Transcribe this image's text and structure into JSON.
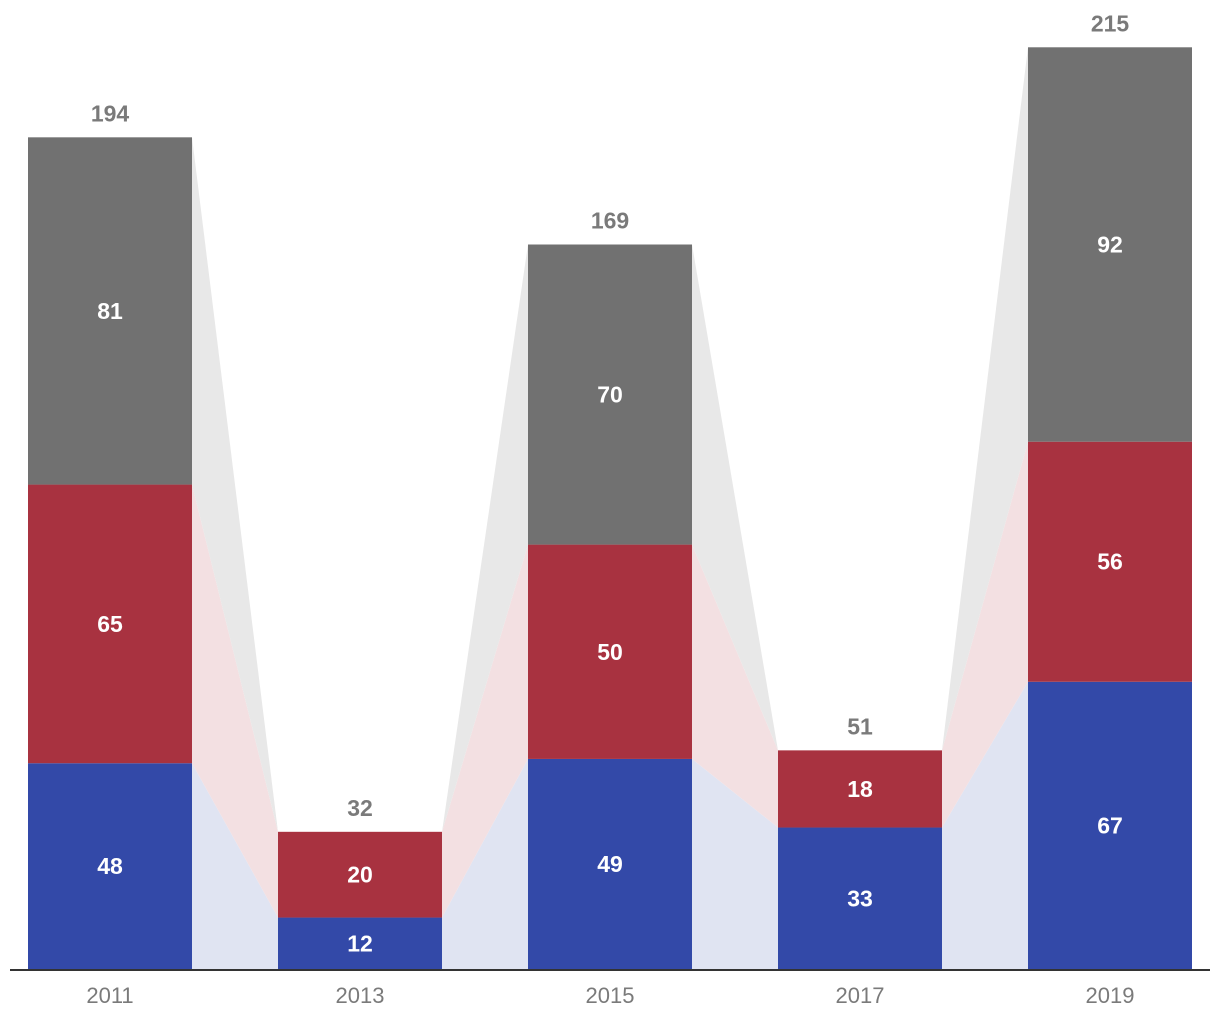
{
  "chart_data": {
    "type": "bar",
    "stacked": true,
    "categories": [
      "2011",
      "2013",
      "2015",
      "2017",
      "2019"
    ],
    "series": [
      {
        "values": [
          48,
          12,
          49,
          33,
          67
        ],
        "color": "#3349a8",
        "band_color": "#e0e4f2"
      },
      {
        "values": [
          65,
          20,
          50,
          18,
          56
        ],
        "color": "#a83240",
        "band_color": "#f3e0e2"
      },
      {
        "values": [
          81,
          0,
          70,
          0,
          92
        ],
        "color": "#717171",
        "band_color": "#e8e8e8"
      }
    ],
    "totals": [
      194,
      32,
      169,
      51,
      215
    ],
    "connector_bands": true,
    "legend": "none",
    "grid": false,
    "xlabel": "",
    "ylabel": "",
    "ylim": [
      0,
      215
    ]
  }
}
